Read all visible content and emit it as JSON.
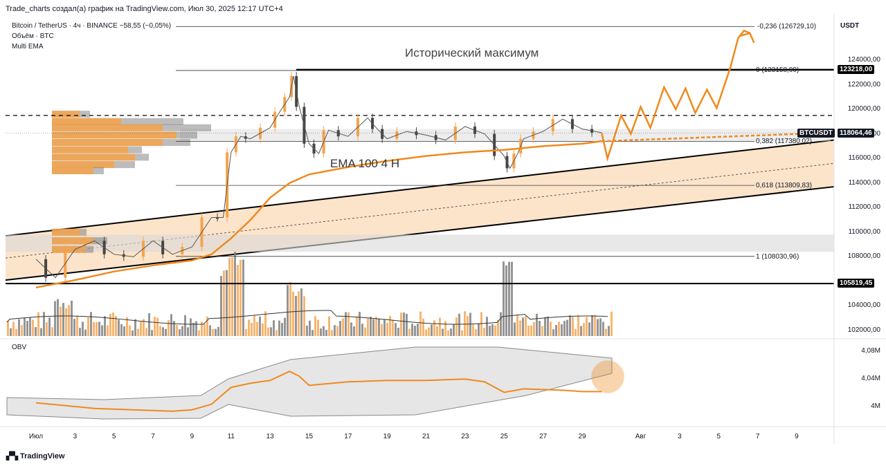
{
  "header": {
    "credit": "Trade_charts создал(а) график на TradingView.com, Июл 30, 2025 12:17 UTC+4",
    "symbol_line": "Bitcoin / TetherUS · 4ч · BINANCE  −58,55 (−0,05%)",
    "volume_label": "Объём · BTC",
    "indicator_label": "Multi EMA",
    "currency": "USDT"
  },
  "annotations": {
    "ath": "Исторический максимум",
    "ema": "EMA 100 4 H"
  },
  "badges": {
    "ath_price": "123218,00",
    "symbol": "BTCUSDT",
    "last_price": "118064,46",
    "support_price": "105819,45"
  },
  "fib_labels": [
    {
      "text": "-0,236 (126729,10)",
      "price": 126729.1
    },
    {
      "text": "0 (123158,90)",
      "price": 123158.9
    },
    {
      "text": "0,382 (117380,02)",
      "price": 117380.02
    },
    {
      "text": "0,618 (113809,83)",
      "price": 113809.83
    },
    {
      "text": "1 (108030,96)",
      "price": 108030.96
    }
  ],
  "obv": {
    "label": "OBV",
    "ticks": [
      "4,08M",
      "4,04M",
      "4M"
    ]
  },
  "footer": {
    "brand": "TradingView"
  },
  "colors": {
    "accent": "#f0891c",
    "up": "#f5a34b",
    "down": "#454545",
    "channel": "#fbd9b5",
    "line": "#000000"
  },
  "chart_data": {
    "type": "candlestick",
    "price_ticks": [
      "124000,00",
      "122000,00",
      "120000,00",
      "118000,00",
      "116000,00",
      "114000,00",
      "112000,00",
      "110000,00",
      "108000,00",
      "104000,00",
      "102000,00"
    ],
    "price_tick_values": [
      124000,
      122000,
      120000,
      118000,
      116000,
      114000,
      112000,
      110000,
      108000,
      104000,
      102000
    ],
    "time_ticks": [
      "Июл",
      "3",
      "5",
      "7",
      "9",
      "11",
      "13",
      "15",
      "17",
      "19",
      "21",
      "23",
      "25",
      "27",
      "29",
      "Авг",
      "3",
      "5",
      "7",
      "9"
    ],
    "time_tick_days": [
      1,
      3,
      5,
      7,
      9,
      11,
      13,
      15,
      17,
      19,
      21,
      23,
      25,
      27,
      29,
      32,
      34,
      36,
      38,
      40
    ],
    "price_path": [
      [
        1,
        107800
      ],
      [
        2,
        106300
      ],
      [
        3,
        108600
      ],
      [
        4,
        109300
      ],
      [
        5,
        108200
      ],
      [
        6,
        108000
      ],
      [
        7,
        109300
      ],
      [
        8,
        108200
      ],
      [
        9,
        108800
      ],
      [
        10,
        111200
      ],
      [
        10.6,
        111200
      ],
      [
        11,
        116500
      ],
      [
        11.5,
        117800
      ],
      [
        12,
        117600
      ],
      [
        13,
        118500
      ],
      [
        13.5,
        119800
      ],
      [
        14,
        121000
      ],
      [
        14.2,
        122700
      ],
      [
        14.5,
        120200
      ],
      [
        15,
        117200
      ],
      [
        15.5,
        116400
      ],
      [
        16,
        118300
      ],
      [
        17,
        117800
      ],
      [
        18,
        119300
      ],
      [
        18.5,
        118400
      ],
      [
        19,
        117600
      ],
      [
        20,
        118200
      ],
      [
        21,
        117900
      ],
      [
        22,
        117500
      ],
      [
        23,
        118600
      ],
      [
        24,
        118000
      ],
      [
        25,
        116200
      ],
      [
        25.3,
        115200
      ],
      [
        25.7,
        116400
      ],
      [
        26,
        117600
      ],
      [
        27,
        118200
      ],
      [
        28,
        119200
      ],
      [
        29,
        118400
      ],
      [
        30,
        118100
      ]
    ],
    "ema100_path": [
      [
        1,
        105500
      ],
      [
        3,
        106100
      ],
      [
        5,
        106800
      ],
      [
        7,
        107300
      ],
      [
        9,
        107700
      ],
      [
        10,
        108200
      ],
      [
        11,
        109500
      ],
      [
        12,
        111000
      ],
      [
        13,
        112800
      ],
      [
        14,
        114000
      ],
      [
        15,
        114700
      ],
      [
        17,
        115300
      ],
      [
        19,
        115800
      ],
      [
        21,
        116200
      ],
      [
        23,
        116500
      ],
      [
        25,
        116700
      ],
      [
        27,
        117000
      ],
      [
        29,
        117200
      ],
      [
        30,
        117400
      ]
    ],
    "projection_path": [
      [
        30,
        118100
      ],
      [
        30.3,
        116000
      ],
      [
        31,
        119500
      ],
      [
        31.5,
        118000
      ],
      [
        32,
        120200
      ],
      [
        32.5,
        118500
      ],
      [
        33.2,
        121800
      ],
      [
        33.8,
        120000
      ],
      [
        34.3,
        121700
      ],
      [
        34.8,
        119700
      ],
      [
        35.4,
        121600
      ],
      [
        35.9,
        120100
      ],
      [
        36.6,
        123400
      ],
      [
        37,
        125800
      ],
      [
        37.3,
        126400
      ],
      [
        37.6,
        126200
      ]
    ],
    "channel_upper": [
      [
        0,
        109700
      ],
      [
        42,
        117500
      ]
    ],
    "channel_lower": [
      [
        0,
        106100
      ],
      [
        42,
        113700
      ]
    ],
    "ath_level": 123218,
    "support_level": 105819.45,
    "resistance_dashed": 119500,
    "obv_ticks": [
      4.08,
      4.04,
      4.0
    ],
    "volume_note": "volume histogram shown below price"
  }
}
